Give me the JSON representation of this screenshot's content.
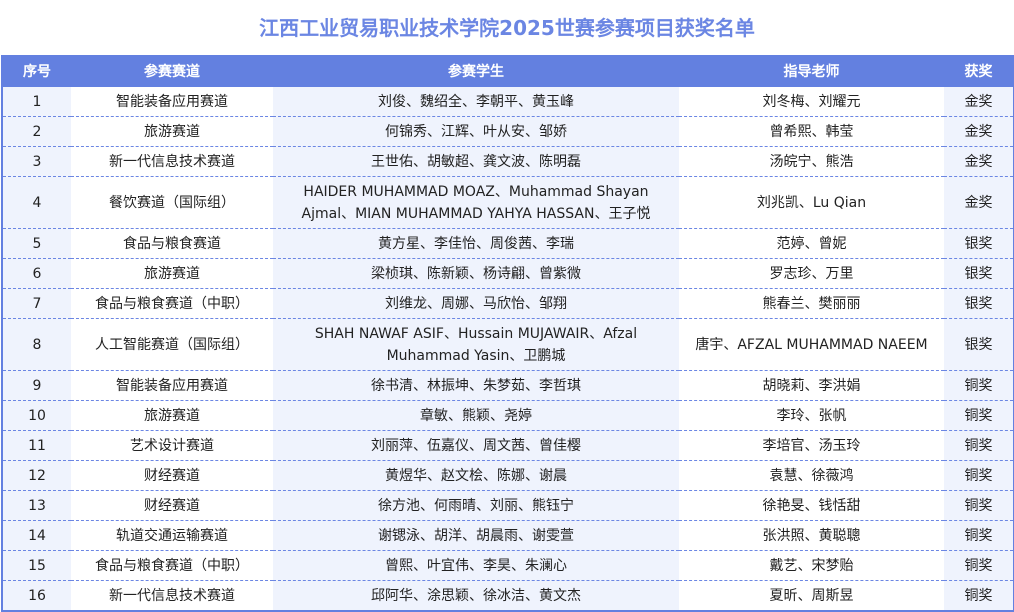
{
  "title": "江西工业贸易职业技术学院2025世赛参赛项目获奖名单",
  "columns": [
    "序号",
    "参赛赛道",
    "参赛学生",
    "指导老师",
    "获奖"
  ],
  "rows": [
    {
      "no": "1",
      "track": "智能装备应用赛道",
      "students": "刘俊、魏绍全、李朝平、黄玉峰",
      "teachers": "刘冬梅、刘耀元",
      "award": "金奖"
    },
    {
      "no": "2",
      "track": "旅游赛道",
      "students": "何锦秀、江辉、叶从安、邹娇",
      "teachers": "曾希熙、韩莹",
      "award": "金奖"
    },
    {
      "no": "3",
      "track": "新一代信息技术赛道",
      "students": "王世佑、胡敏超、龚文波、陈明磊",
      "teachers": "汤皖宁、熊浩",
      "award": "金奖"
    },
    {
      "no": "4",
      "track": "餐饮赛道（国际组）",
      "students": "HAIDER MUHAMMAD MOAZ、Muhammad Shayan Ajmal、MIAN MUHAMMAD YAHYA HASSAN、王子悦",
      "teachers": "刘兆凯、Lu Qian",
      "award": "金奖"
    },
    {
      "no": "5",
      "track": "食品与粮食赛道",
      "students": "黄方星、李佳怡、周俊茜、李瑞",
      "teachers": "范婷、曾妮",
      "award": "银奖"
    },
    {
      "no": "6",
      "track": "旅游赛道",
      "students": "梁桢琪、陈新颖、杨诗翩、曾紫微",
      "teachers": "罗志珍、万里",
      "award": "银奖"
    },
    {
      "no": "7",
      "track": "食品与粮食赛道（中职）",
      "students": "刘维龙、周娜、马欣怡、邹翔",
      "teachers": "熊春兰、樊丽丽",
      "award": "银奖"
    },
    {
      "no": "8",
      "track": "人工智能赛道（国际组）",
      "students": "SHAH NAWAF ASIF、Hussain MUJAWAIR、Afzal Muhammad Yasin、卫鹏城",
      "teachers": "唐宇、AFZAL MUHAMMAD NAEEM",
      "award": "银奖"
    },
    {
      "no": "9",
      "track": "智能装备应用赛道",
      "students": "徐书清、林振坤、朱梦茹、李哲琪",
      "teachers": "胡晓莉、李洪娟",
      "award": "铜奖"
    },
    {
      "no": "10",
      "track": "旅游赛道",
      "students": "章敏、熊颖、尧婷",
      "teachers": "李玲、张帆",
      "award": "铜奖"
    },
    {
      "no": "11",
      "track": "艺术设计赛道",
      "students": "刘丽萍、伍嘉仪、周文茜、曾佳樱",
      "teachers": "李培官、汤玉玲",
      "award": "铜奖"
    },
    {
      "no": "12",
      "track": "财经赛道",
      "students": "黄煜华、赵文桧、陈娜、谢晨",
      "teachers": "袁慧、徐薇鸿",
      "award": "铜奖"
    },
    {
      "no": "13",
      "track": "财经赛道",
      "students": "徐方池、何雨晴、刘丽、熊钰宁",
      "teachers": "徐艳旻、钱恬甜",
      "award": "铜奖"
    },
    {
      "no": "14",
      "track": "轨道交通运输赛道",
      "students": "谢锶泳、胡洋、胡晨雨、谢雯萱",
      "teachers": "张洪照、黄聪聰",
      "award": "铜奖"
    },
    {
      "no": "15",
      "track": "食品与粮食赛道（中职）",
      "students": "曾熙、叶宜伟、李昊、朱澜心",
      "teachers": "戴艺、宋梦贻",
      "award": "铜奖"
    },
    {
      "no": "16",
      "track": "新一代信息技术赛道",
      "students": "邱阿华、涂思颖、徐冰洁、黄文杰",
      "teachers": "夏昕、周斯昱",
      "award": "铜奖"
    }
  ]
}
